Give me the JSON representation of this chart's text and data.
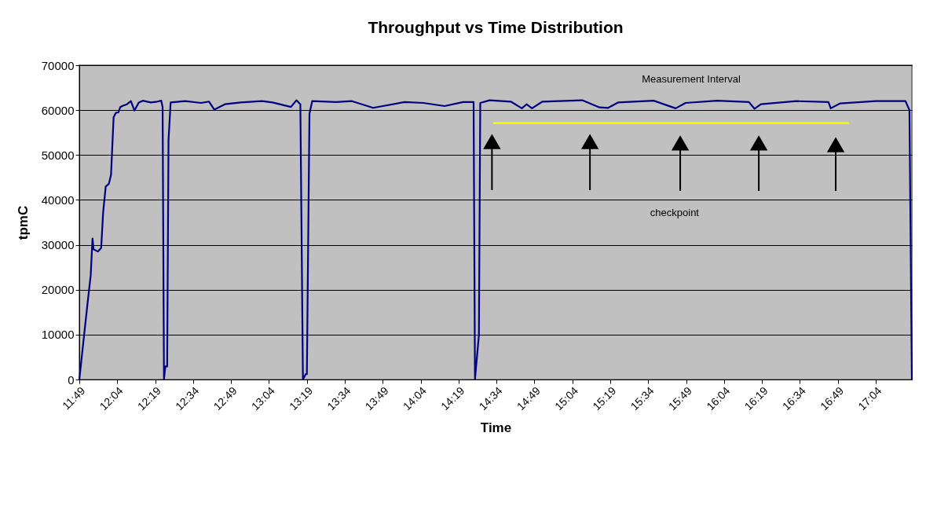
{
  "chart_data": {
    "type": "line",
    "title": "Throughput vs Time Distribution",
    "xlabel": "Time",
    "ylabel": "tpmC",
    "xlim": [
      11.817,
      17.305
    ],
    "ylim": [
      0,
      70000
    ],
    "xticks": [
      {
        "value": 11.817,
        "label": "11:49"
      },
      {
        "value": 12.067,
        "label": "12:04"
      },
      {
        "value": 12.317,
        "label": "12:19"
      },
      {
        "value": 12.567,
        "label": "12:34"
      },
      {
        "value": 12.817,
        "label": "12:49"
      },
      {
        "value": 13.067,
        "label": "13:04"
      },
      {
        "value": 13.317,
        "label": "13:19"
      },
      {
        "value": 13.567,
        "label": "13:34"
      },
      {
        "value": 13.817,
        "label": "13:49"
      },
      {
        "value": 14.067,
        "label": "14:04"
      },
      {
        "value": 14.317,
        "label": "14:19"
      },
      {
        "value": 14.567,
        "label": "14:34"
      },
      {
        "value": 14.817,
        "label": "14:49"
      },
      {
        "value": 15.067,
        "label": "15:04"
      },
      {
        "value": 15.317,
        "label": "15:19"
      },
      {
        "value": 15.567,
        "label": "15:34"
      },
      {
        "value": 15.817,
        "label": "15:49"
      },
      {
        "value": 16.067,
        "label": "16:04"
      },
      {
        "value": 16.317,
        "label": "16:19"
      },
      {
        "value": 16.567,
        "label": "16:34"
      },
      {
        "value": 16.817,
        "label": "16:49"
      },
      {
        "value": 17.067,
        "label": "17:04"
      }
    ],
    "yticks": [
      0,
      10000,
      20000,
      30000,
      40000,
      50000,
      60000,
      70000
    ],
    "grid": "y",
    "marker": "none",
    "line_style": "solid",
    "series": [
      {
        "color": "#000080",
        "x": [
          11.817,
          11.869,
          11.892,
          11.904,
          11.911,
          11.939,
          11.961,
          11.974,
          11.991,
          12.012,
          12.026,
          12.043,
          12.058,
          12.075,
          12.087,
          12.105,
          12.131,
          12.157,
          12.18,
          12.209,
          12.235,
          12.288,
          12.331,
          12.357,
          12.366,
          12.375,
          12.384,
          12.396,
          12.405,
          12.419,
          12.515,
          12.62,
          12.672,
          12.707,
          12.776,
          12.881,
          13.021,
          13.09,
          13.212,
          13.248,
          13.274,
          13.291,
          13.309,
          13.317,
          13.334,
          13.352,
          13.509,
          13.614,
          13.754,
          13.963,
          14.085,
          14.225,
          14.347,
          14.416,
          14.425,
          14.451,
          14.46,
          14.521,
          14.661,
          14.734,
          14.765,
          14.801,
          14.87,
          15.132,
          15.246,
          15.303,
          15.368,
          15.603,
          15.748,
          15.813,
          16.022,
          16.231,
          16.268,
          16.31,
          16.545,
          16.755,
          16.77,
          16.833,
          17.069,
          17.263,
          17.289,
          17.305
        ],
        "values": [
          0,
          16300,
          23200,
          31400,
          29000,
          28500,
          29300,
          37200,
          43000,
          43600,
          45600,
          58400,
          59400,
          59500,
          60700,
          61000,
          61300,
          62000,
          59900,
          61700,
          62100,
          61700,
          61900,
          62100,
          60700,
          0,
          2900,
          2900,
          53400,
          61700,
          62000,
          61600,
          61900,
          60100,
          61300,
          61700,
          62000,
          61700,
          60700,
          62200,
          61300,
          0,
          1200,
          1200,
          59200,
          62000,
          61800,
          62000,
          60500,
          61800,
          61600,
          60900,
          61800,
          61800,
          0,
          9900,
          61600,
          62200,
          61900,
          60400,
          61300,
          60400,
          61900,
          62200,
          60600,
          60500,
          61700,
          62100,
          60400,
          61600,
          62100,
          61800,
          60300,
          61300,
          62000,
          61800,
          60400,
          61500,
          62000,
          62000,
          60000,
          0
        ]
      },
      {
        "type": "line",
        "color": "#ffff00",
        "x": [
          14.545,
          16.89
        ],
        "values": [
          57100,
          57100
        ]
      },
      {
        "type": "scatter",
        "marker": "triangle",
        "color": "#000000",
        "x": [
          14.537,
          15.183,
          15.778,
          16.296,
          16.803
        ],
        "values": [
          53000,
          53000,
          52700,
          52700,
          52300
        ],
        "errors": [
          [
            42200,
            53000
          ],
          [
            42200,
            53000
          ],
          [
            42000,
            52700
          ],
          [
            42000,
            52700
          ],
          [
            42000,
            52300
          ]
        ]
      }
    ],
    "annotations": [
      "Measurement   Interval",
      "checkpoint"
    ]
  }
}
